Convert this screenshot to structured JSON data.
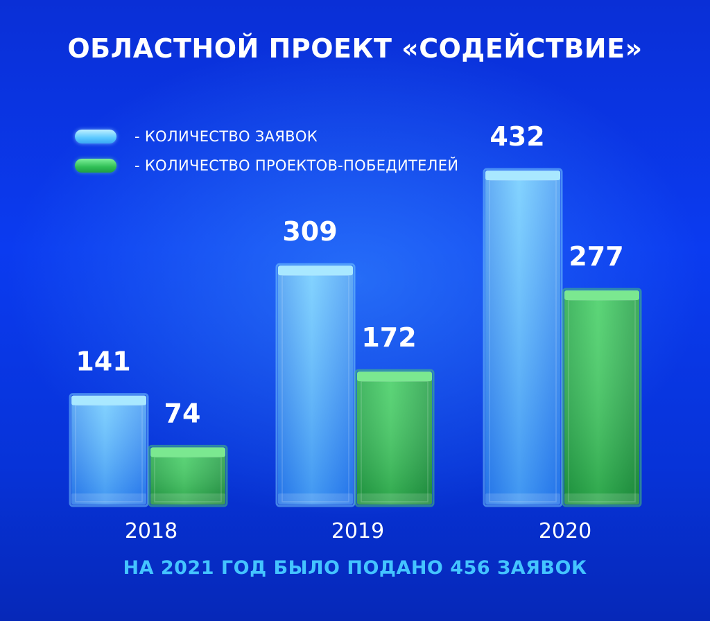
{
  "title": "ОБЛАСТНОЙ ПРОЕКТ «СОДЕЙСТВИЕ»",
  "legend": {
    "applications": "- КОЛИЧЕСТВО ЗАЯВОК",
    "winners": "- КОЛИЧЕСТВО ПРОЕКТОВ-ПОБЕДИТЕЛЕЙ"
  },
  "footer": "НА 2021 ГОД БЫЛО ПОДАНО 456 ЗАЯВОК",
  "colors": {
    "applications": "#4ab8ff",
    "winners": "#2fbf55",
    "accent": "#44c4ff"
  },
  "chart_data": {
    "type": "bar",
    "categories": [
      "2018",
      "2019",
      "2020"
    ],
    "series": [
      {
        "name": "- КОЛИЧЕСТВО ЗАЯВОК",
        "values": [
          141,
          309,
          432
        ]
      },
      {
        "name": "- КОЛИЧЕСТВО ПРОЕКТОВ-ПОБЕДИТЕЛЕЙ",
        "values": [
          74,
          172,
          277
        ]
      }
    ],
    "ylim": [
      0,
      432
    ],
    "grid": false,
    "legend": "top-left"
  }
}
